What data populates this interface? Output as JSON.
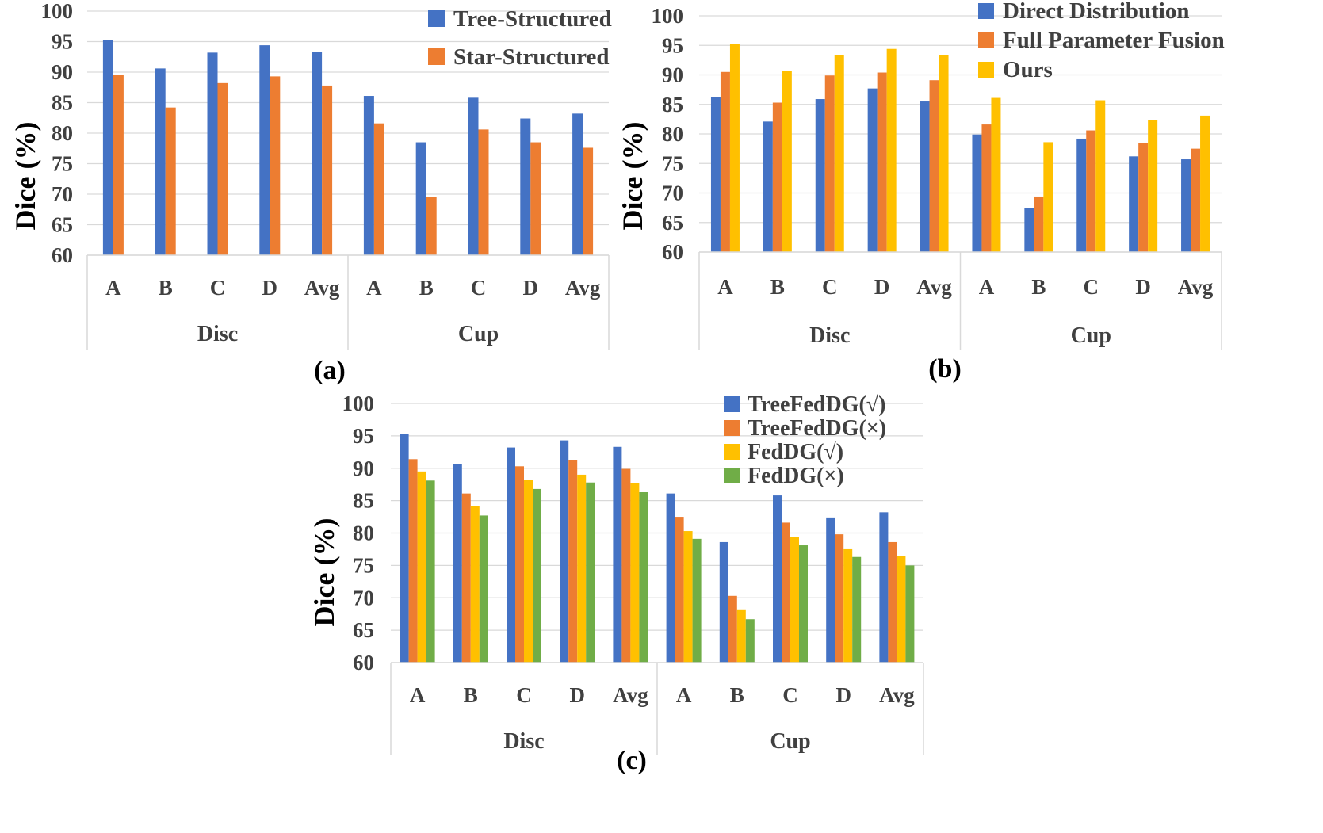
{
  "chart_data": [
    {
      "id": "a",
      "type": "bar",
      "caption": "(a)",
      "ylabel": "Dice (%)",
      "ylim": [
        60,
        100
      ],
      "yticks": [
        "60",
        "65",
        "70",
        "75",
        "80",
        "85",
        "90",
        "95",
        "100"
      ],
      "groups": [
        {
          "label": "Disc",
          "categories": [
            "A",
            "B",
            "C",
            "D",
            "Avg"
          ]
        },
        {
          "label": "Cup",
          "categories": [
            "A",
            "B",
            "C",
            "D",
            "Avg"
          ]
        }
      ],
      "series": [
        {
          "name": "Tree-Structured",
          "color": "#4472C4",
          "values": [
            95.3,
            90.6,
            93.2,
            94.4,
            93.3,
            86.1,
            78.5,
            85.8,
            82.4,
            83.2
          ]
        },
        {
          "name": "Star-Structured",
          "color": "#ED7D31",
          "values": [
            89.6,
            84.2,
            88.2,
            89.3,
            87.8,
            81.6,
            69.5,
            80.6,
            78.5,
            77.6
          ]
        }
      ],
      "legend": "top-right"
    },
    {
      "id": "b",
      "type": "bar",
      "caption": "(b)",
      "ylabel": "Dice (%)",
      "ylim": [
        60,
        100
      ],
      "yticks": [
        "60",
        "65",
        "70",
        "75",
        "80",
        "85",
        "90",
        "95",
        "100"
      ],
      "groups": [
        {
          "label": "Disc",
          "categories": [
            "A",
            "B",
            "C",
            "D",
            "Avg"
          ]
        },
        {
          "label": "Cup",
          "categories": [
            "A",
            "B",
            "C",
            "D",
            "Avg"
          ]
        }
      ],
      "series": [
        {
          "name": "Direct Distribution",
          "color": "#4472C4",
          "values": [
            86.3,
            82.1,
            85.9,
            87.7,
            85.5,
            79.9,
            67.4,
            79.2,
            76.2,
            75.7
          ]
        },
        {
          "name": "Full Parameter Fusion",
          "color": "#ED7D31",
          "values": [
            90.5,
            85.3,
            89.9,
            90.4,
            89.1,
            81.6,
            69.4,
            80.6,
            78.4,
            77.5
          ]
        },
        {
          "name": "Ours",
          "color": "#FFC000",
          "values": [
            95.3,
            90.7,
            93.3,
            94.4,
            93.4,
            86.1,
            78.6,
            85.7,
            82.4,
            83.1
          ]
        }
      ],
      "legend": "top-right"
    },
    {
      "id": "c",
      "type": "bar",
      "caption": "(c)",
      "ylabel": "Dice (%)",
      "ylim": [
        60,
        100
      ],
      "yticks": [
        "60",
        "65",
        "70",
        "75",
        "80",
        "85",
        "90",
        "95",
        "100"
      ],
      "groups": [
        {
          "label": "Disc",
          "categories": [
            "A",
            "B",
            "C",
            "D",
            "Avg"
          ]
        },
        {
          "label": "Cup",
          "categories": [
            "A",
            "B",
            "C",
            "D",
            "Avg"
          ]
        }
      ],
      "series": [
        {
          "name": "TreeFedDG(√)",
          "color": "#4472C4",
          "values": [
            95.3,
            90.6,
            93.2,
            94.3,
            93.3,
            86.1,
            78.6,
            85.8,
            82.4,
            83.2
          ]
        },
        {
          "name": "TreeFedDG(×)",
          "color": "#ED7D31",
          "values": [
            91.4,
            86.1,
            90.3,
            91.2,
            89.9,
            82.5,
            70.3,
            81.6,
            79.8,
            78.6
          ]
        },
        {
          "name": "FedDG(√)",
          "color": "#FFC000",
          "values": [
            89.5,
            84.2,
            88.2,
            89.0,
            87.7,
            80.3,
            68.1,
            79.4,
            77.5,
            76.4
          ]
        },
        {
          "name": "FedDG(×)",
          "color": "#70AD47",
          "values": [
            88.1,
            82.7,
            86.8,
            87.8,
            86.3,
            79.1,
            66.7,
            78.1,
            76.3,
            75.0
          ]
        }
      ],
      "legend": "top-right"
    }
  ]
}
